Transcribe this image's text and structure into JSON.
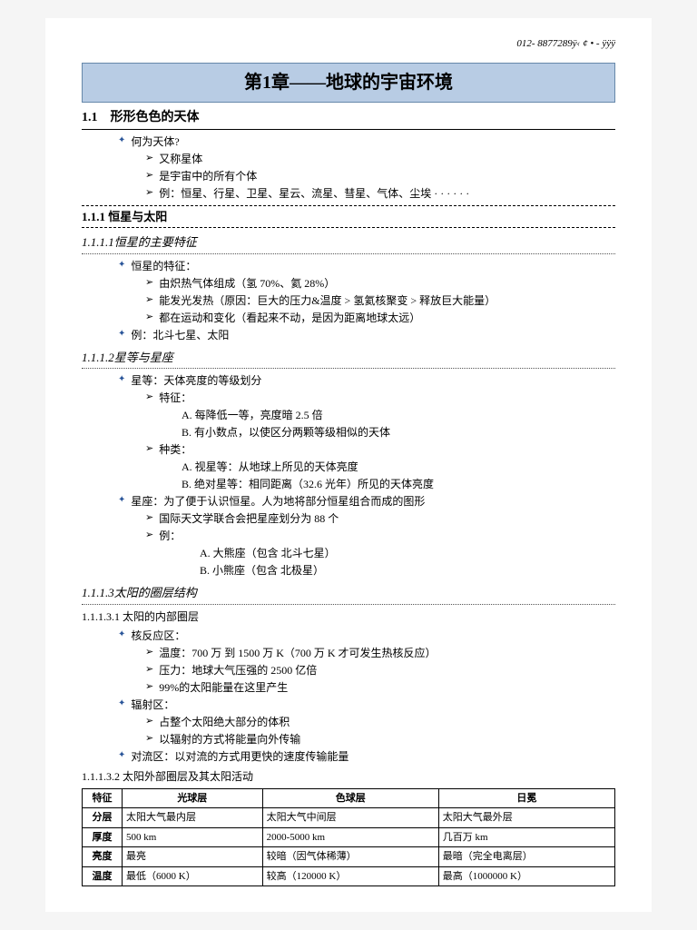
{
  "header_code": "012- 8877289ÿ‹ ¢ • - ÿÿÿ",
  "chapter_title": "第1章——地球的宇宙环境",
  "s11": {
    "num": "1.1",
    "title": "形形色色的天体"
  },
  "q1": "何为天体?",
  "q1_items": [
    "又称星体",
    "是宇宙中的所有个体",
    "例：恒星、行星、卫星、星云、流星、彗星、气体、尘埃 · · · · · ·"
  ],
  "s111": "1.1.1 恒星与太阳",
  "s1111": "1.1.1.1恒星的主要特征",
  "b_star_feat": "恒星的特征：",
  "star_feat": [
    "由炽热气体组成（氢 70%、氦 28%）",
    "能发光发热（原因：巨大的压力&温度 > 氢氦核聚变 > 释放巨大能量）",
    "都在运动和变化（看起来不动，是因为距离地球太远）"
  ],
  "b_star_ex": "例：北斗七星、太阳",
  "s1112": "1.1.1.2星等与星座",
  "b_mag": "星等：天体亮度的等级划分",
  "mag_feat_label": "特征：",
  "mag_feat": [
    "A.  每降低一等，亮度暗 2.5 倍",
    "B.  有小数点，以使区分两颗等级相似的天体"
  ],
  "mag_type_label": "种类：",
  "mag_type": [
    "A.  视星等：从地球上所见的天体亮度",
    "B.  绝对星等：相同距离（32.6 光年）所见的天体亮度"
  ],
  "b_const": "星座：为了便于认识恒星。人为地将部分恒星组合而成的图形",
  "const_items": [
    "国际天文学联合会把星座划分为 88 个",
    "例："
  ],
  "const_ex": [
    "A.  大熊座（包含 北斗七星）",
    "B.  小熊座（包含 北极星）"
  ],
  "s1113": "1.1.1.3太阳的圈层结构",
  "s11131": "1.1.1.3.1 太阳的内部圈层",
  "b_core": "核反应区：",
  "core_items": [
    "温度：700 万 到 1500 万 K（700 万 K 才可发生热核反应）",
    "压力：地球大气压强的 2500 亿倍",
    "99%的太阳能量在这里产生"
  ],
  "b_rad": "辐射区：",
  "rad_items": [
    "占整个太阳绝大部分的体积",
    "以辐射的方式将能量向外传输"
  ],
  "b_conv": "对流区：以对流的方式用更快的速度传输能量",
  "s11132": "1.1.1.3.2 太阳外部圈层及其太阳活动",
  "table": {
    "headers": [
      "特征",
      "光球层",
      "色球层",
      "日冕"
    ],
    "rows": [
      [
        "分层",
        "太阳大气最内层",
        "太阳大气中间层",
        "太阳大气最外层"
      ],
      [
        "厚度",
        "500 km",
        "2000-5000 km",
        "几百万 km"
      ],
      [
        "亮度",
        "最亮",
        "较暗（因气体稀薄）",
        "最暗（完全电离层）"
      ],
      [
        "温度",
        "最低（6000 K）",
        "较高（120000 K）",
        "最高（1000000 K）"
      ]
    ],
    "col_widths": [
      "44px",
      "160px",
      "180px",
      "auto"
    ]
  },
  "colors": {
    "chapter_bg": "#b8cce4",
    "chapter_border": "#6688aa",
    "bullet_color": "#2a5599"
  }
}
